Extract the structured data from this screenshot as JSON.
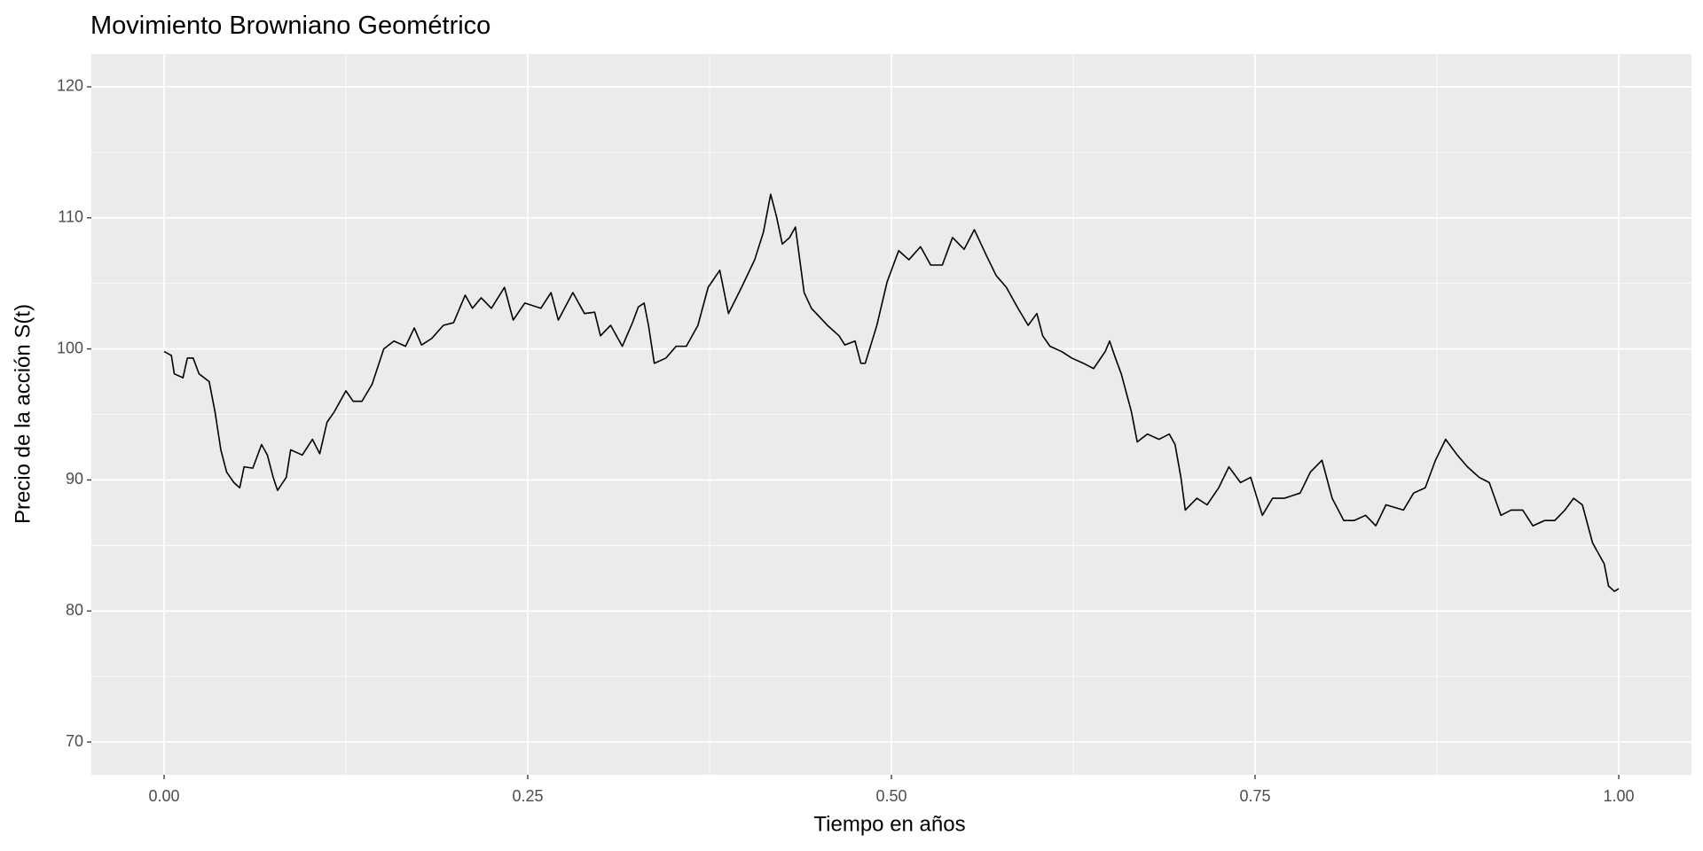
{
  "chart_data": {
    "type": "line",
    "title": "Movimiento Browniano Geométrico",
    "x_label": "Tiempo en años",
    "y_label": "Precio de la acción S(t)",
    "color": "#000000",
    "grid": true,
    "xlim": [
      -0.05,
      1.05
    ],
    "ylim": [
      67.5,
      122.5
    ],
    "xticks": [
      {
        "value": 0,
        "label": "0.00"
      },
      {
        "value": 0.25,
        "label": "0.25"
      },
      {
        "value": 0.5,
        "label": "0.50"
      },
      {
        "value": 0.75,
        "label": "0.75"
      },
      {
        "value": 1,
        "label": "1.00"
      }
    ],
    "minor_xticks": [
      0.125,
      0.375,
      0.625,
      0.875
    ],
    "yticks": [
      70,
      80,
      90,
      100,
      110,
      120
    ],
    "minor_yticks": [
      75,
      85,
      95,
      105,
      115
    ],
    "x": [
      0,
      0.005,
      0.007,
      0.013,
      0.016,
      0.02,
      0.024,
      0.031,
      0.035,
      0.039,
      0.043,
      0.048,
      0.052,
      0.055,
      0.061,
      0.067,
      0.071,
      0.075,
      0.078,
      0.084,
      0.087,
      0.095,
      0.102,
      0.107,
      0.112,
      0.117,
      0.125,
      0.13,
      0.136,
      0.143,
      0.151,
      0.158,
      0.166,
      0.172,
      0.177,
      0.184,
      0.192,
      0.199,
      0.207,
      0.212,
      0.218,
      0.225,
      0.234,
      0.24,
      0.248,
      0.259,
      0.266,
      0.271,
      0.281,
      0.289,
      0.296,
      0.3,
      0.307,
      0.315,
      0.322,
      0.326,
      0.33,
      0.333,
      0.337,
      0.345,
      0.352,
      0.359,
      0.367,
      0.374,
      0.382,
      0.388,
      0.397,
      0.406,
      0.412,
      0.417,
      0.421,
      0.425,
      0.43,
      0.434,
      0.44,
      0.445,
      0.456,
      0.464,
      0.468,
      0.475,
      0.479,
      0.482,
      0.49,
      0.497,
      0.505,
      0.512,
      0.52,
      0.527,
      0.535,
      0.542,
      0.55,
      0.557,
      0.565,
      0.572,
      0.579,
      0.587,
      0.594,
      0.6,
      0.604,
      0.609,
      0.617,
      0.624,
      0.632,
      0.639,
      0.647,
      0.65,
      0.654,
      0.658,
      0.665,
      0.669,
      0.676,
      0.684,
      0.691,
      0.695,
      0.699,
      0.702,
      0.71,
      0.717,
      0.725,
      0.732,
      0.74,
      0.747,
      0.755,
      0.762,
      0.77,
      0.781,
      0.788,
      0.796,
      0.803,
      0.811,
      0.818,
      0.826,
      0.833,
      0.84,
      0.852,
      0.859,
      0.867,
      0.874,
      0.881,
      0.889,
      0.896,
      0.904,
      0.911,
      0.919,
      0.926,
      0.934,
      0.941,
      0.949,
      0.956,
      0.963,
      0.969,
      0.975,
      0.982,
      0.99,
      0.993,
      0.997,
      1.0
    ],
    "values": [
      99.8,
      99.5,
      98.1,
      97.8,
      99.3,
      99.3,
      98.1,
      97.5,
      95.2,
      92.3,
      90.6,
      89.8,
      89.4,
      91.0,
      90.9,
      92.7,
      91.9,
      90.2,
      89.2,
      90.2,
      92.3,
      91.9,
      93.1,
      92.0,
      94.4,
      95.2,
      96.8,
      96.0,
      96.0,
      97.3,
      100,
      100.6,
      100.2,
      101.6,
      100.3,
      100.8,
      101.8,
      102.0,
      104.1,
      103.1,
      103.9,
      103.1,
      104.7,
      102.2,
      103.5,
      103.1,
      104.3,
      102.2,
      104.3,
      102.7,
      102.8,
      101.0,
      101.8,
      100.2,
      102.0,
      103.2,
      103.5,
      101.8,
      98.9,
      99.3,
      100.2,
      100.2,
      101.8,
      104.7,
      106.0,
      102.7,
      104.7,
      106.8,
      108.9,
      111.8,
      110.1,
      108.0,
      108.5,
      109.3,
      104.3,
      103.1,
      101.8,
      101.0,
      100.3,
      100.6,
      98.9,
      98.9,
      101.8,
      105.1,
      107.5,
      106.8,
      107.8,
      106.4,
      106.4,
      108.5,
      107.6,
      109.1,
      107.2,
      105.6,
      104.7,
      103.1,
      101.8,
      102.7,
      101.0,
      100.2,
      99.8,
      99.3,
      98.9,
      98.5,
      99.8,
      100.6,
      99.3,
      98.1,
      95.2,
      92.9,
      93.5,
      93.1,
      93.5,
      92.7,
      90.2,
      87.7,
      88.6,
      88.1,
      89.4,
      91.0,
      89.8,
      90.2,
      87.3,
      88.6,
      88.6,
      89.0,
      90.6,
      91.5,
      88.6,
      86.9,
      86.9,
      87.3,
      86.5,
      88.1,
      87.7,
      89.0,
      89.4,
      91.5,
      93.1,
      91.9,
      91.0,
      90.2,
      89.8,
      87.3,
      87.7,
      87.7,
      86.5,
      86.9,
      86.9,
      87.7,
      88.6,
      88.1,
      85.2,
      83.6,
      81.9,
      81.5,
      81.7
    ]
  }
}
